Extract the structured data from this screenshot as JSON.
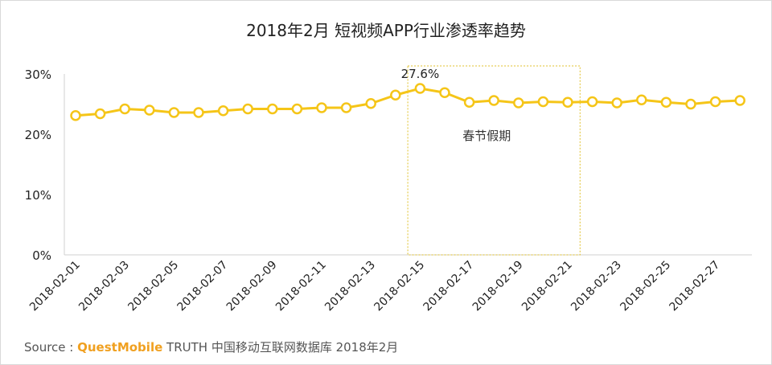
{
  "chart_data": {
    "type": "line",
    "title": "2018年2月 短视频APP行业渗透率趋势",
    "x": [
      "2018-02-01",
      "2018-02-02",
      "2018-02-03",
      "2018-02-04",
      "2018-02-05",
      "2018-02-06",
      "2018-02-07",
      "2018-02-08",
      "2018-02-09",
      "2018-02-10",
      "2018-02-11",
      "2018-02-12",
      "2018-02-13",
      "2018-02-14",
      "2018-02-15",
      "2018-02-16",
      "2018-02-17",
      "2018-02-18",
      "2018-02-19",
      "2018-02-20",
      "2018-02-21",
      "2018-02-22",
      "2018-02-23",
      "2018-02-24",
      "2018-02-25",
      "2018-02-26",
      "2018-02-27",
      "2018-02-28"
    ],
    "x_tick_labels": [
      "2018-02-01",
      "2018-02-03",
      "2018-02-05",
      "2018-02-07",
      "2018-02-09",
      "2018-02-11",
      "2018-02-13",
      "2018-02-15",
      "2018-02-17",
      "2018-02-19",
      "2018-02-21",
      "2018-02-23",
      "2018-02-25",
      "2018-02-27"
    ],
    "values": [
      23.1,
      23.4,
      24.2,
      24.0,
      23.6,
      23.6,
      23.9,
      24.2,
      24.2,
      24.2,
      24.4,
      24.4,
      25.1,
      26.5,
      27.6,
      26.9,
      25.3,
      25.6,
      25.2,
      25.4,
      25.3,
      25.4,
      25.2,
      25.7,
      25.3,
      25.0,
      25.4,
      25.6
    ],
    "ylim": [
      0,
      30
    ],
    "y_ticks": [
      "0%",
      "10%",
      "20%",
      "30%"
    ],
    "peak_label": "27.6%",
    "peak_index": 14,
    "annotation_box": {
      "from_index": 13.5,
      "to_index": 20.5,
      "label": "春节假期"
    },
    "grid": false,
    "colors": {
      "line": "#f5c518",
      "marker_fill": "#ffffff",
      "box": "#e0c028",
      "axis": "#d0d0d0"
    }
  },
  "source": {
    "prefix": "Source :",
    "brand": "QuestMobile",
    "rest": "TRUTH 中国移动互联网数据库 2018年2月"
  }
}
